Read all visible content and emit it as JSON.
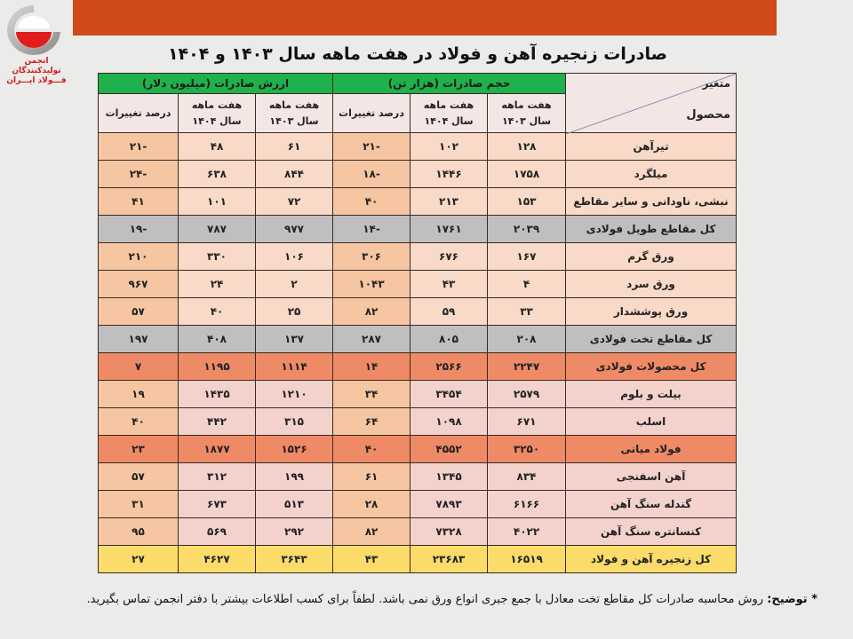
{
  "logo": {
    "line1": "انجمن تولیدکنندگان",
    "line2": "فـــولاد ایـــران",
    "colors": {
      "red": "#d11b1b",
      "gray": "#9b9b9b"
    }
  },
  "header_bar_color": "#d04a1a",
  "title": "صادرات زنجیره آهن و فولاد در هفت ماهه سال ۱۴۰۳ و ۱۴۰۴",
  "table": {
    "corner_top": "متغیر",
    "corner_bottom": "محصول",
    "groups": {
      "volume": "حجم صادرات (هزار تن)",
      "value": "ارزش صادرات (میلیون دلار)"
    },
    "subheaders": {
      "y1403_line1": "هفت ماهه",
      "y1403_line2": "سال ۱۴۰۳",
      "y1404_line1": "هفت ماهه",
      "y1404_line2": "سال ۱۴۰۴",
      "change": "درصد تغییرات"
    },
    "rows": [
      {
        "product": "تیرآهن",
        "vol_1403": "۱۲۸",
        "vol_1404": "۱۰۲",
        "vol_change": "-۲۱",
        "val_1403": "۶۱",
        "val_1404": "۴۸",
        "val_change": "-۲۱",
        "style": "light"
      },
      {
        "product": "میلگرد",
        "vol_1403": "۱۷۵۸",
        "vol_1404": "۱۴۴۶",
        "vol_change": "-۱۸",
        "val_1403": "۸۴۴",
        "val_1404": "۶۳۸",
        "val_change": "-۲۴",
        "style": "light"
      },
      {
        "product": "نبشی، ناودانی و سایر مقاطع",
        "vol_1403": "۱۵۳",
        "vol_1404": "۲۱۳",
        "vol_change": "۴۰",
        "val_1403": "۷۲",
        "val_1404": "۱۰۱",
        "val_change": "۴۱",
        "style": "light"
      },
      {
        "product": "کل مقاطع طویل فولادی",
        "vol_1403": "۲۰۳۹",
        "vol_1404": "۱۷۶۱",
        "vol_change": "-۱۴",
        "val_1403": "۹۷۷",
        "val_1404": "۷۸۷",
        "val_change": "-۱۹",
        "style": "gray"
      },
      {
        "product": "ورق گرم",
        "vol_1403": "۱۶۷",
        "vol_1404": "۶۷۶",
        "vol_change": "۳۰۶",
        "val_1403": "۱۰۶",
        "val_1404": "۳۳۰",
        "val_change": "۲۱۰",
        "style": "light"
      },
      {
        "product": "ورق سرد",
        "vol_1403": "۴",
        "vol_1404": "۴۳",
        "vol_change": "۱۰۴۳",
        "val_1403": "۲",
        "val_1404": "۲۴",
        "val_change": "۹۶۷",
        "style": "light"
      },
      {
        "product": "ورق پوششدار",
        "vol_1403": "۳۳",
        "vol_1404": "۵۹",
        "vol_change": "۸۲",
        "val_1403": "۲۵",
        "val_1404": "۴۰",
        "val_change": "۵۷",
        "style": "light"
      },
      {
        "product": "کل مقاطع تخت فولادی",
        "vol_1403": "۲۰۸",
        "vol_1404": "۸۰۵",
        "vol_change": "۲۸۷",
        "val_1403": "۱۳۷",
        "val_1404": "۴۰۸",
        "val_change": "۱۹۷",
        "style": "gray"
      },
      {
        "product": "کل محصولات فولادی",
        "vol_1403": "۲۲۴۷",
        "vol_1404": "۲۵۶۶",
        "vol_change": "۱۴",
        "val_1403": "۱۱۱۴",
        "val_1404": "۱۱۹۵",
        "val_change": "۷",
        "style": "orange"
      },
      {
        "product": "بیلت و بلوم",
        "vol_1403": "۲۵۷۹",
        "vol_1404": "۳۴۵۴",
        "vol_change": "۳۴",
        "val_1403": "۱۲۱۰",
        "val_1404": "۱۴۳۵",
        "val_change": "۱۹",
        "style": "pink"
      },
      {
        "product": "اسلب",
        "vol_1403": "۶۷۱",
        "vol_1404": "۱۰۹۸",
        "vol_change": "۶۴",
        "val_1403": "۳۱۵",
        "val_1404": "۴۴۲",
        "val_change": "۴۰",
        "style": "pink"
      },
      {
        "product": "فولاد میانی",
        "vol_1403": "۳۲۵۰",
        "vol_1404": "۴۵۵۲",
        "vol_change": "۴۰",
        "val_1403": "۱۵۲۶",
        "val_1404": "۱۸۷۷",
        "val_change": "۲۳",
        "style": "orange"
      },
      {
        "product": "آهن اسفنجی",
        "vol_1403": "۸۳۴",
        "vol_1404": "۱۳۴۵",
        "vol_change": "۶۱",
        "val_1403": "۱۹۹",
        "val_1404": "۳۱۲",
        "val_change": "۵۷",
        "style": "pink"
      },
      {
        "product": "گندله سنگ آهن",
        "vol_1403": "۶۱۶۶",
        "vol_1404": "۷۸۹۳",
        "vol_change": "۲۸",
        "val_1403": "۵۱۳",
        "val_1404": "۶۷۳",
        "val_change": "۳۱",
        "style": "pink"
      },
      {
        "product": "کنسانتره سنگ آهن",
        "vol_1403": "۴۰۲۲",
        "vol_1404": "۷۳۲۸",
        "vol_change": "۸۲",
        "val_1403": "۲۹۲",
        "val_1404": "۵۶۹",
        "val_change": "۹۵",
        "style": "pink"
      },
      {
        "product": "کل زنجیره آهن و فولاد",
        "vol_1403": "۱۶۵۱۹",
        "vol_1404": "۲۳۶۸۳",
        "vol_change": "۴۳",
        "val_1403": "۳۶۴۳",
        "val_1404": "۴۶۲۷",
        "val_change": "۲۷",
        "style": "yellow"
      }
    ]
  },
  "footnote": {
    "marker": "* توضیح:",
    "text": " روش محاسبه صادرات کل مقاطع تخت معادل با جمع جبری انواع ورق نمی باشد. لطفاً برای کسب اطلاعات بیشتر با دفتر انجمن تماس بگیرید."
  }
}
